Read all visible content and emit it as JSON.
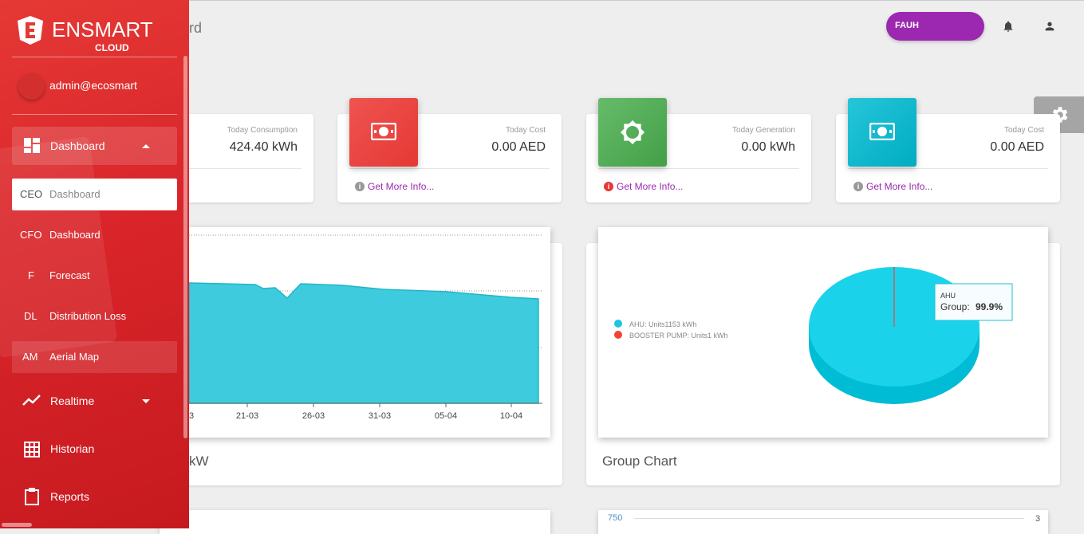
{
  "header": {
    "title_fragment": "rd",
    "site": "FAUH"
  },
  "cards": [
    {
      "label": "Today Consumption",
      "value": "424.40 kWh"
    },
    {
      "label": "Today Cost",
      "value": "0.00 AED",
      "link": "Get More Info..."
    },
    {
      "label": "Today Generation",
      "value": "0.00 kWh",
      "link": "Get More Info..."
    },
    {
      "label": "Today Cost",
      "value": "0.00 AED",
      "link": "Get More Info..."
    }
  ],
  "area_chart": {
    "x_labels": [
      "3",
      "21-03",
      "26-03",
      "31-03",
      "05-04",
      "10-04"
    ],
    "title_fragment": "kW"
  },
  "group_chart": {
    "title": "Group Chart",
    "legend": [
      "AHU: Units1153 kWh",
      "BOOSTER PUMP: Units1 kWh"
    ],
    "tooltip": {
      "name": "AHU",
      "label": "Group:",
      "value": "99.9%"
    }
  },
  "bottom_chart": {
    "left_tick": "750",
    "right_tick": "3"
  },
  "sidebar": {
    "brand": "ENSMART",
    "brand_sub": "CLOUD",
    "user": "admin@ecosmart",
    "menu": [
      {
        "label": "Dashboard"
      },
      {
        "label": "Realtime"
      },
      {
        "label": "Historian"
      },
      {
        "label": "Reports"
      }
    ],
    "submenu": [
      {
        "abbr": "CEO",
        "label": "Dashboard"
      },
      {
        "abbr": "CFO",
        "label": "Dashboard"
      },
      {
        "abbr": "F",
        "label": "Forecast"
      },
      {
        "abbr": "DL",
        "label": "Distribution Loss"
      },
      {
        "abbr": "AM",
        "label": "Aerial Map"
      }
    ]
  }
}
